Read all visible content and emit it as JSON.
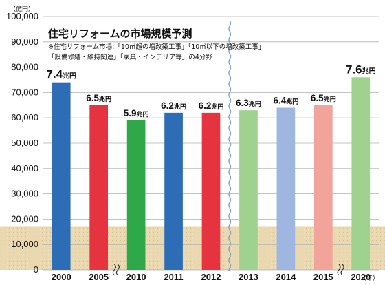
{
  "chart_data": {
    "type": "bar",
    "title": "住宅リフォームの市場規模予測",
    "notes": [
      "※住宅リフォーム市場:「10㎡超の増改築工事」「10㎡以下の増改築工事」",
      "「設備修繕・維持関連」「家具・インテリア等」の4分野"
    ],
    "y_unit": "（億円）",
    "x_unit": "（年）",
    "ylim": [
      0,
      100000
    ],
    "yticks": [
      "0",
      "10,000",
      "20,000",
      "30,000",
      "40,000",
      "50,000",
      "60,000",
      "70,000",
      "80,000",
      "90,000",
      "100,000"
    ],
    "categories": [
      "2000",
      "2005",
      "2010",
      "2011",
      "2012",
      "2013",
      "2014",
      "2015",
      "2020"
    ],
    "values": [
      74000,
      65000,
      59000,
      62000,
      62000,
      63000,
      64000,
      65000,
      76000
    ],
    "value_labels": [
      "7.4",
      "6.5",
      "5.9",
      "6.2",
      "6.2",
      "6.3",
      "6.4",
      "6.5",
      "7.6"
    ],
    "value_unit": "兆円",
    "colors": [
      "#2c6db5",
      "#e5343f",
      "#2fa84a",
      "#2c6db5",
      "#e5343f",
      "#9fd18f",
      "#9fb6e0",
      "#f2a39a",
      "#9fd18f"
    ],
    "actual_forecast_divider_after": "2012",
    "axis_breaks_between": [
      [
        "2005",
        "2010"
      ],
      [
        "2015",
        "2020"
      ]
    ],
    "grid": true,
    "background_band_up_to": 17000,
    "band_color": "#ead9b0",
    "divider_color": "#7aa3cc"
  }
}
